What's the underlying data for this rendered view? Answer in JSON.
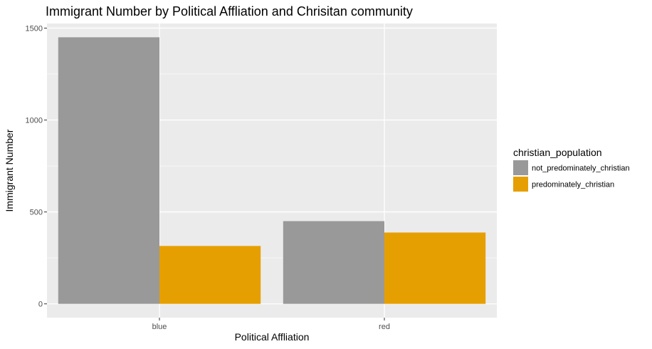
{
  "chart_data": {
    "type": "bar",
    "title": "Immigrant Number by Political Affliation and Chrisitan community",
    "xlabel": "Political Affliation",
    "ylabel": "Immigrant Number",
    "categories": [
      "blue",
      "red"
    ],
    "series": [
      {
        "name": "not_predominately_christian",
        "values": [
          1450,
          450
        ],
        "color": "#999999"
      },
      {
        "name": "predominately_christian",
        "values": [
          315,
          388
        ],
        "color": "#E69F00"
      }
    ],
    "ylim": [
      -75,
      1525
    ],
    "yticks": [
      0,
      500,
      1000,
      1500
    ],
    "ytick_labels": [
      "0",
      "500",
      "1000",
      "1500"
    ],
    "legend_title": "christian_population",
    "legend_position": "right",
    "grid": true,
    "panel_background": "#EBEBEB"
  }
}
